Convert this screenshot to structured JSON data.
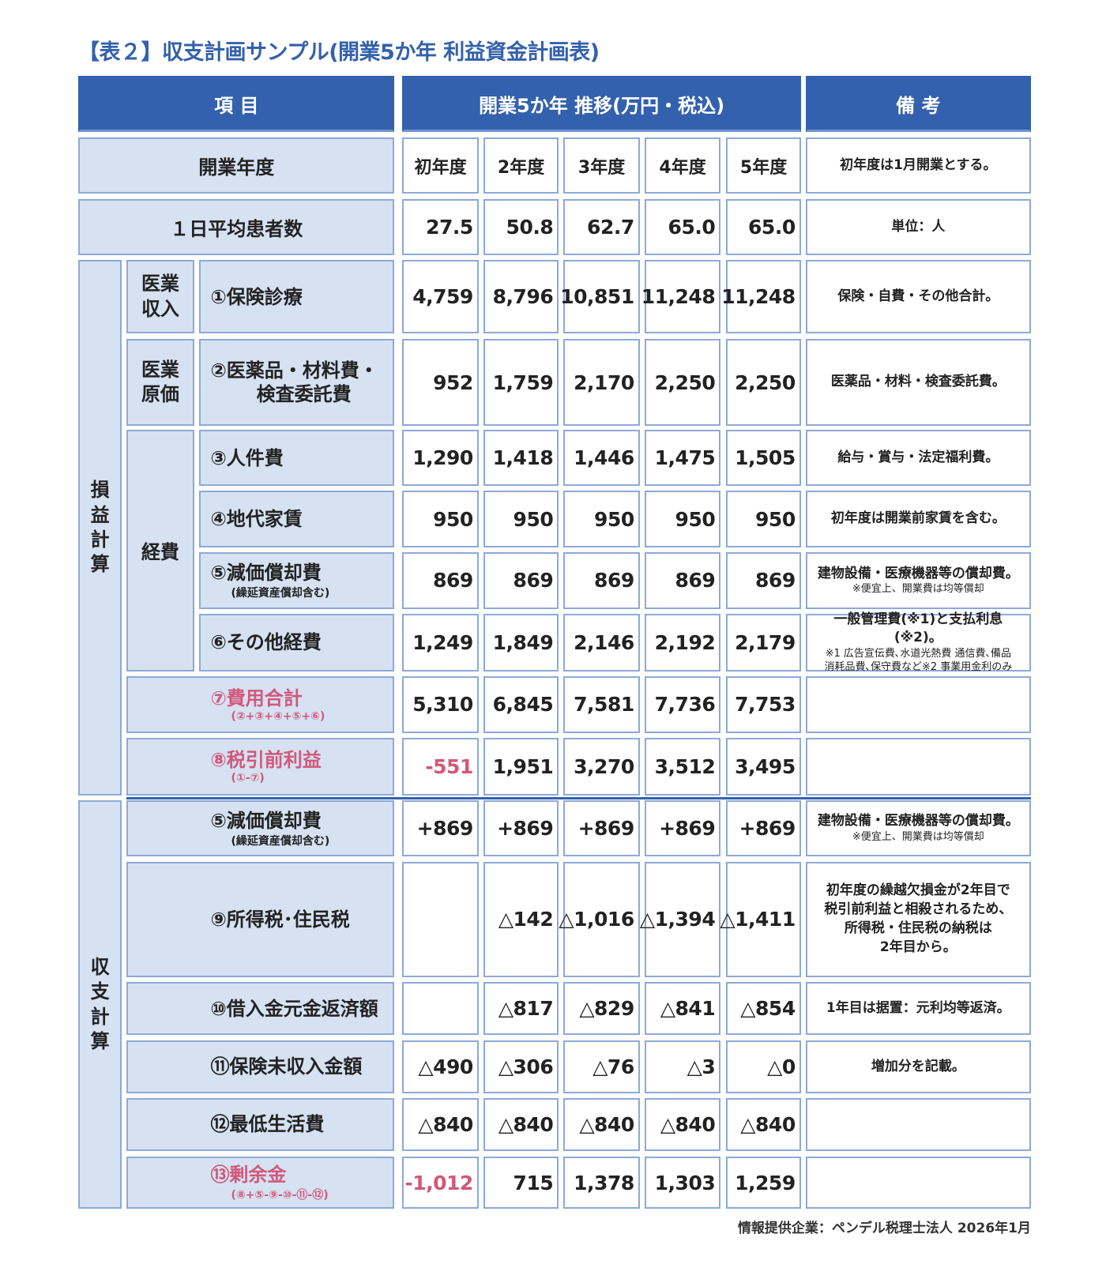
{
  "title": "【表２】収支計画サンプル(開業5か年 利益資金計画表)",
  "header": {
    "item": "項 目",
    "trend": "開業5か年 推移(万円・税込)",
    "note": "備 考"
  },
  "years": {
    "label": "開業年度",
    "values": [
      "初年度",
      "2年度",
      "3年度",
      "4年度",
      "5年度"
    ],
    "note": "初年度は1月開業とする。"
  },
  "patients": {
    "label": "１日平均患者数",
    "values": [
      "27.5",
      "50.8",
      "62.7",
      "65.0",
      "65.0"
    ],
    "note": "単位：人"
  },
  "sections": {
    "pl": "損益計算",
    "cf": "収支計算"
  },
  "groups": {
    "revenue": "医業収入",
    "cost": "医業原価",
    "expense": "経費"
  },
  "rows": [
    {
      "label": "①保険診療",
      "sub": "",
      "values": [
        "4,759",
        "8,796",
        "10,851",
        "11,248",
        "11,248"
      ],
      "note": "保険・自費・その他合計。",
      "note_sub": ""
    },
    {
      "label": "②医薬品・材料費・\n　検査委託費",
      "sub": "",
      "values": [
        "952",
        "1,759",
        "2,170",
        "2,250",
        "2,250"
      ],
      "note": "医薬品・材料・検査委託費。",
      "note_sub": ""
    },
    {
      "label": "③人件費",
      "sub": "",
      "values": [
        "1,290",
        "1,418",
        "1,446",
        "1,475",
        "1,505"
      ],
      "note": "給与・賞与・法定福利費。",
      "note_sub": ""
    },
    {
      "label": "④地代家賃",
      "sub": "",
      "values": [
        "950",
        "950",
        "950",
        "950",
        "950"
      ],
      "note": "初年度は開業前家賃を含む。",
      "note_sub": ""
    },
    {
      "label": "⑤減価償却費",
      "sub": "(繰延資産償却含む)",
      "values": [
        "869",
        "869",
        "869",
        "869",
        "869"
      ],
      "note": "建物設備・医療機器等の償却費。",
      "note_sub": "※便宜上、開業費は均等償却"
    },
    {
      "label": "⑥その他経費",
      "sub": "",
      "values": [
        "1,249",
        "1,849",
        "2,146",
        "2,192",
        "2,179"
      ],
      "note": "一般管理費(※1)と支払利息(※2)。",
      "note_sub": "※1 広告宣伝費､水道光熱費 通信費､備品\n消耗品費､保守費など※2 事業用金利のみ"
    },
    {
      "label": "⑦費用合計",
      "sub": "(②+③+④+⑤+⑥)",
      "values": [
        "5,310",
        "6,845",
        "7,581",
        "7,736",
        "7,753"
      ],
      "note": "",
      "note_sub": ""
    },
    {
      "label": "⑧税引前利益",
      "sub": "(①-⑦)",
      "values": [
        "-551",
        "1,951",
        "3,270",
        "3,512",
        "3,495"
      ],
      "note": "",
      "note_sub": ""
    },
    {
      "label": "⑤減価償却費",
      "sub": "(繰延資産償却含む)",
      "values": [
        "+869",
        "+869",
        "+869",
        "+869",
        "+869"
      ],
      "note": "建物設備・医療機器等の償却費。",
      "note_sub": "※便宜上、開業費は均等償却"
    },
    {
      "label": "⑨所得税･住民税",
      "sub": "",
      "values": [
        "",
        "△142",
        "△1,016",
        "△1,394",
        "△1,411"
      ],
      "note": "初年度の繰越欠損金が2年目で\n税引前利益と相殺されるため、\n所得税・住民税の納税は\n2年目から。",
      "note_sub": ""
    },
    {
      "label": "⑩借入金元金返済額",
      "sub": "",
      "values": [
        "",
        "△817",
        "△829",
        "△841",
        "△854"
      ],
      "note": "1年目は据置：元利均等返済。",
      "note_sub": ""
    },
    {
      "label": "⑪保険未収入金額",
      "sub": "",
      "values": [
        "△490",
        "△306",
        "△76",
        "△3",
        "△0"
      ],
      "note": "増加分を記載。",
      "note_sub": ""
    },
    {
      "label": "⑫最低生活費",
      "sub": "",
      "values": [
        "△840",
        "△840",
        "△840",
        "△840",
        "△840"
      ],
      "note": "",
      "note_sub": ""
    },
    {
      "label": "⑬剰余金",
      "sub": "(⑧+⑤-⑨-⑩-⑪-⑫)",
      "values": [
        "-1,012",
        "715",
        "1,378",
        "1,303",
        "1,259"
      ],
      "note": "",
      "note_sub": ""
    }
  ],
  "colors": {
    "header": "#3461ad",
    "label_bg": "#d6e1f2",
    "border": "#8ea9d8",
    "highlight": "#d2587a"
  },
  "footer": "情報提供企業：ペンデル税理士法人 2026年1月"
}
